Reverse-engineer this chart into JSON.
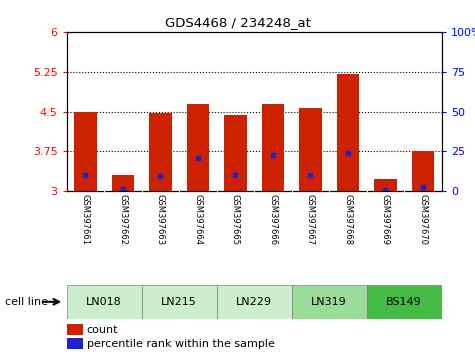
{
  "title": "GDS4468 / 234248_at",
  "samples": [
    "GSM397661",
    "GSM397662",
    "GSM397663",
    "GSM397664",
    "GSM397665",
    "GSM397666",
    "GSM397667",
    "GSM397668",
    "GSM397669",
    "GSM397670"
  ],
  "count_values": [
    4.5,
    3.3,
    4.47,
    4.65,
    4.43,
    4.65,
    4.57,
    5.2,
    3.22,
    3.76
  ],
  "percentile_values": [
    3.3,
    3.05,
    3.28,
    3.63,
    3.3,
    3.68,
    3.3,
    3.72,
    3.02,
    3.07
  ],
  "cell_lines": [
    {
      "name": "LN018",
      "samples": [
        0,
        1
      ],
      "color": "#cceecc"
    },
    {
      "name": "LN215",
      "samples": [
        2,
        3
      ],
      "color": "#cceecc"
    },
    {
      "name": "LN229",
      "samples": [
        4,
        5
      ],
      "color": "#cceecc"
    },
    {
      "name": "LN319",
      "samples": [
        6,
        7
      ],
      "color": "#99dd99"
    },
    {
      "name": "BS149",
      "samples": [
        8,
        9
      ],
      "color": "#44bb44"
    }
  ],
  "bar_color": "#cc2200",
  "dot_color": "#2222cc",
  "ymin": 3.0,
  "ymax": 6.0,
  "yticks": [
    3.0,
    3.75,
    4.5,
    5.25,
    6.0
  ],
  "ytick_labels": [
    "3",
    "3.75",
    "4.5",
    "5.25",
    "6"
  ],
  "right_ytick_labels": [
    "0",
    "25",
    "50",
    "75",
    "100%"
  ],
  "dotted_lines": [
    3.75,
    4.5,
    5.25
  ],
  "cell_line_label": "cell line",
  "gray_bg": "#c8c8c8",
  "label_area_color": "#d0d0d0"
}
